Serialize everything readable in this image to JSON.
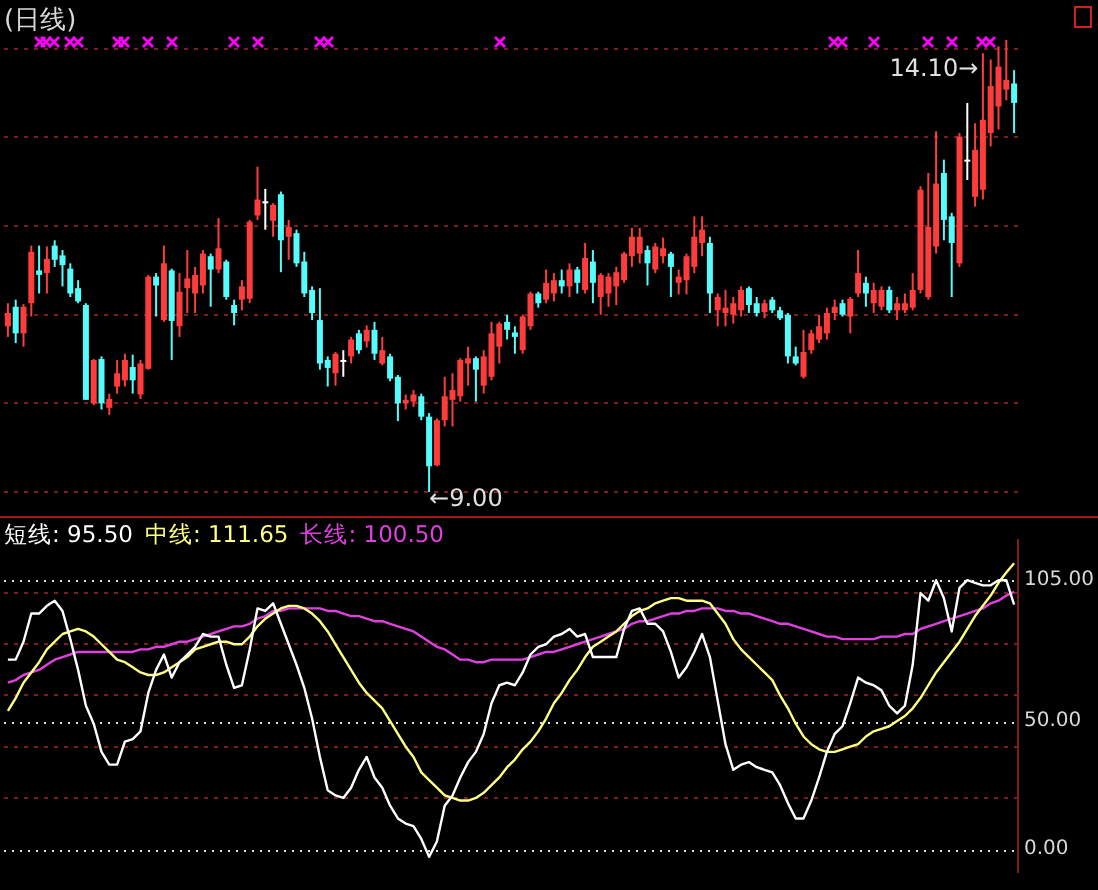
{
  "chart_data": [
    {
      "type": "candlestick",
      "title": "(日线)",
      "categories": [
        null,
        null,
        null,
        null,
        null,
        null,
        null,
        null,
        null,
        null,
        null,
        null,
        null,
        null,
        null,
        null,
        null,
        null,
        null,
        null,
        null,
        null,
        null,
        null,
        null,
        null,
        null,
        null,
        null,
        null,
        null,
        null,
        null,
        null,
        null,
        null,
        null,
        null,
        null,
        null,
        null,
        null,
        null,
        null,
        null,
        null,
        null,
        null,
        null,
        null,
        null,
        null,
        null,
        null,
        null,
        null,
        null,
        null,
        null,
        null,
        null,
        null,
        null,
        null,
        null,
        null,
        null,
        null,
        null,
        null,
        null,
        null,
        null,
        null,
        null,
        null,
        null,
        null,
        null,
        null,
        null,
        null,
        null,
        null,
        null,
        null,
        null,
        null,
        null,
        null,
        null,
        null,
        null,
        null,
        null,
        null,
        null,
        null,
        null,
        null,
        null,
        null,
        null,
        null,
        null,
        null,
        null,
        null,
        null,
        null,
        null,
        null,
        null,
        null,
        null,
        null,
        null,
        null,
        null,
        null,
        null,
        null,
        null,
        null,
        null,
        null,
        null,
        null,
        null,
        null
      ],
      "yticks": [
        {
          "value": 9,
          "label": null
        },
        {
          "value": 10,
          "label": null
        },
        {
          "value": 11,
          "label": null
        },
        {
          "value": 12,
          "label": null
        },
        {
          "value": 13,
          "label": null
        },
        {
          "value": 14,
          "label": null
        }
      ],
      "grid": "y",
      "tick_labels": false,
      "ohlc": [
        [
          10.87,
          11.13,
          10.75,
          11.02
        ],
        [
          11.09,
          11.17,
          10.68,
          10.79
        ],
        [
          10.79,
          11.12,
          10.64,
          11.09
        ],
        [
          11.13,
          11.78,
          10.98,
          11.71
        ],
        [
          11.5,
          11.78,
          11.24,
          11.45
        ],
        [
          11.47,
          11.77,
          11.24,
          11.63
        ],
        [
          11.78,
          11.84,
          11.54,
          11.62
        ],
        [
          11.67,
          11.73,
          11.32,
          11.56
        ],
        [
          11.52,
          11.58,
          11.2,
          11.24
        ],
        [
          11.3,
          11.39,
          11.13,
          11.15
        ],
        [
          11.11,
          11.13,
          10.04,
          10.04
        ],
        [
          10.0,
          10.5,
          9.98,
          10.49
        ],
        [
          10.5,
          10.53,
          9.93,
          10.0
        ],
        [
          9.95,
          10.11,
          9.87,
          10.05
        ],
        [
          10.19,
          10.49,
          10.11,
          10.34
        ],
        [
          10.26,
          10.56,
          10.19,
          10.49
        ],
        [
          10.41,
          10.55,
          10.11,
          10.26
        ],
        [
          10.1,
          10.49,
          10.05,
          10.45
        ],
        [
          10.39,
          11.45,
          10.38,
          11.43
        ],
        [
          11.43,
          11.47,
          10.98,
          11.33
        ],
        [
          10.94,
          11.78,
          10.92,
          11.58
        ],
        [
          11.5,
          11.52,
          10.49,
          10.93
        ],
        [
          10.87,
          11.47,
          10.75,
          11.26
        ],
        [
          11.3,
          11.73,
          11.02,
          11.41
        ],
        [
          11.24,
          11.54,
          11.02,
          11.45
        ],
        [
          11.33,
          11.73,
          11.24,
          11.69
        ],
        [
          11.66,
          11.69,
          11.09,
          11.51
        ],
        [
          11.51,
          12.09,
          11.47,
          11.75
        ],
        [
          11.6,
          11.62,
          11.17,
          11.2
        ],
        [
          11.11,
          11.17,
          10.88,
          11.02
        ],
        [
          11.17,
          11.39,
          11.05,
          11.32
        ],
        [
          11.18,
          12.07,
          11.13,
          12.05
        ],
        [
          12.12,
          12.67,
          12.07,
          12.3
        ],
        [
          12.28,
          12.42,
          11.96,
          12.28
        ],
        [
          12.06,
          12.26,
          11.88,
          12.24
        ],
        [
          12.36,
          12.39,
          11.48,
          11.84
        ],
        [
          11.88,
          12.07,
          11.62,
          11.99
        ],
        [
          11.92,
          11.96,
          11.54,
          11.58
        ],
        [
          11.6,
          11.71,
          11.2,
          11.24
        ],
        [
          11.28,
          11.32,
          10.94,
          11.02
        ],
        [
          10.94,
          11.3,
          10.38,
          10.45
        ],
        [
          10.49,
          10.53,
          10.19,
          10.4
        ],
        [
          10.34,
          10.58,
          10.2,
          10.56
        ],
        [
          10.49,
          10.6,
          10.3,
          10.49
        ],
        [
          10.53,
          10.75,
          10.45,
          10.72
        ],
        [
          10.79,
          10.83,
          10.56,
          10.6
        ],
        [
          10.7,
          10.88,
          10.63,
          10.83
        ],
        [
          10.83,
          10.92,
          10.49,
          10.56
        ],
        [
          10.45,
          10.75,
          10.43,
          10.6
        ],
        [
          10.53,
          10.56,
          10.25,
          10.28
        ],
        [
          10.3,
          10.32,
          9.8,
          10.0
        ],
        [
          10.0,
          10.1,
          9.93,
          10.04
        ],
        [
          10.02,
          10.15,
          9.96,
          10.1
        ],
        [
          10.08,
          10.11,
          9.81,
          9.85
        ],
        [
          9.85,
          9.89,
          9.0,
          9.29
        ],
        [
          9.3,
          9.83,
          9.29,
          9.81
        ],
        [
          9.81,
          10.3,
          9.74,
          10.08
        ],
        [
          10.04,
          10.34,
          9.74,
          10.15
        ],
        [
          10.08,
          10.51,
          10.02,
          10.49
        ],
        [
          10.45,
          10.64,
          10.2,
          10.51
        ],
        [
          10.51,
          10.53,
          10.02,
          10.38
        ],
        [
          10.2,
          10.6,
          10.11,
          10.53
        ],
        [
          10.3,
          10.92,
          10.26,
          10.79
        ],
        [
          10.64,
          10.92,
          10.45,
          10.9
        ],
        [
          10.92,
          11.0,
          10.72,
          10.83
        ],
        [
          10.8,
          10.87,
          10.56,
          10.75
        ],
        [
          10.6,
          11.0,
          10.56,
          10.98
        ],
        [
          10.87,
          11.26,
          10.83,
          11.24
        ],
        [
          11.24,
          11.26,
          11.08,
          11.13
        ],
        [
          11.17,
          11.51,
          11.13,
          11.36
        ],
        [
          11.24,
          11.47,
          11.15,
          11.39
        ],
        [
          11.39,
          11.51,
          11.24,
          11.32
        ],
        [
          11.32,
          11.58,
          11.2,
          11.51
        ],
        [
          11.51,
          11.54,
          11.24,
          11.36
        ],
        [
          11.28,
          11.81,
          11.24,
          11.64
        ],
        [
          11.6,
          11.73,
          11.13,
          11.36
        ],
        [
          11.2,
          11.47,
          11.0,
          11.45
        ],
        [
          11.24,
          11.47,
          11.09,
          11.43
        ],
        [
          11.32,
          11.54,
          11.11,
          11.48
        ],
        [
          11.39,
          11.71,
          11.36,
          11.69
        ],
        [
          11.66,
          11.98,
          11.54,
          11.88
        ],
        [
          11.69,
          11.98,
          11.58,
          11.88
        ],
        [
          11.73,
          11.78,
          11.33,
          11.58
        ],
        [
          11.51,
          11.81,
          11.47,
          11.77
        ],
        [
          11.66,
          11.87,
          11.58,
          11.75
        ],
        [
          11.69,
          11.71,
          11.2,
          11.54
        ],
        [
          11.36,
          11.51,
          11.23,
          11.43
        ],
        [
          11.39,
          11.69,
          11.23,
          11.66
        ],
        [
          11.54,
          12.11,
          11.47,
          11.88
        ],
        [
          11.81,
          12.11,
          11.66,
          11.96
        ],
        [
          11.81,
          11.88,
          11.02,
          11.24
        ],
        [
          11.05,
          11.24,
          10.87,
          11.2
        ],
        [
          11.02,
          11.28,
          10.87,
          11.08
        ],
        [
          11.0,
          11.2,
          10.9,
          11.13
        ],
        [
          11.05,
          11.32,
          10.98,
          11.28
        ],
        [
          11.3,
          11.32,
          11.02,
          11.11
        ],
        [
          11.13,
          11.2,
          10.98,
          11.02
        ],
        [
          11.03,
          11.17,
          10.96,
          11.13
        ],
        [
          11.17,
          11.2,
          11.02,
          11.05
        ],
        [
          11.05,
          11.09,
          10.94,
          10.96
        ],
        [
          11.0,
          11.02,
          10.45,
          10.53
        ],
        [
          10.53,
          10.64,
          10.43,
          10.45
        ],
        [
          10.3,
          10.83,
          10.28,
          10.58
        ],
        [
          10.6,
          10.83,
          10.56,
          10.79
        ],
        [
          10.72,
          11.0,
          10.68,
          10.87
        ],
        [
          10.79,
          11.08,
          10.72,
          11.02
        ],
        [
          11.02,
          11.17,
          10.94,
          11.09
        ],
        [
          11.13,
          11.17,
          10.98,
          11.0
        ],
        [
          10.98,
          11.2,
          10.79,
          11.18
        ],
        [
          11.24,
          11.73,
          11.2,
          11.47
        ],
        [
          11.36,
          11.43,
          11.09,
          11.24
        ],
        [
          11.13,
          11.36,
          11.02,
          11.28
        ],
        [
          11.09,
          11.32,
          11.05,
          11.28
        ],
        [
          11.28,
          11.32,
          11.02,
          11.05
        ],
        [
          11.05,
          11.2,
          10.94,
          11.13
        ],
        [
          11.05,
          11.24,
          11.02,
          11.13
        ],
        [
          11.08,
          11.47,
          11.05,
          11.28
        ],
        [
          11.28,
          12.45,
          11.24,
          12.41
        ],
        [
          11.2,
          12.6,
          11.17,
          11.99
        ],
        [
          11.77,
          13.07,
          11.69,
          12.48
        ],
        [
          12.6,
          12.75,
          11.84,
          12.07
        ],
        [
          12.11,
          12.15,
          11.2,
          11.81
        ],
        [
          11.58,
          13.05,
          11.54,
          13.01
        ],
        [
          12.75,
          13.39,
          12.52,
          12.75
        ],
        [
          12.33,
          13.16,
          12.22,
          12.86
        ],
        [
          12.41,
          13.95,
          12.3,
          13.2
        ],
        [
          13.05,
          13.88,
          12.9,
          13.58
        ],
        [
          13.35,
          14.03,
          13.09,
          13.8
        ],
        [
          13.54,
          14.1,
          13.42,
          13.65
        ],
        [
          13.61,
          13.76,
          13.05,
          13.39
        ]
      ],
      "colors": [
        "#ff3c3c",
        "#54fcfc",
        "#ff3c3c",
        "#ff3c3c",
        "#54fcfc",
        "#ff3c3c",
        "#54fcfc",
        "#54fcfc",
        "#54fcfc",
        "#54fcfc",
        "#54fcfc",
        "#ff3c3c",
        "#54fcfc",
        "#ff3c3c",
        "#ff3c3c",
        "#ff3c3c",
        "#54fcfc",
        "#ff3c3c",
        "#ff3c3c",
        "#54fcfc",
        "#ff3c3c",
        "#54fcfc",
        "#ff3c3c",
        "#ff3c3c",
        "#ff3c3c",
        "#ff3c3c",
        "#54fcfc",
        "#ff3c3c",
        "#54fcfc",
        "#54fcfc",
        "#ff3c3c",
        "#ff3c3c",
        "#ff3c3c",
        "#ffffff",
        "#ff3c3c",
        "#54fcfc",
        "#ff3c3c",
        "#54fcfc",
        "#54fcfc",
        "#54fcfc",
        "#54fcfc",
        "#54fcfc",
        "#ff3c3c",
        "#ffffff",
        "#ff3c3c",
        "#54fcfc",
        "#ff3c3c",
        "#54fcfc",
        "#ff3c3c",
        "#54fcfc",
        "#54fcfc",
        "#ff3c3c",
        "#ff3c3c",
        "#54fcfc",
        "#54fcfc",
        "#ff3c3c",
        "#ff3c3c",
        "#ff3c3c",
        "#ff3c3c",
        "#ff3c3c",
        "#54fcfc",
        "#ff3c3c",
        "#ff3c3c",
        "#ff3c3c",
        "#54fcfc",
        "#54fcfc",
        "#ff3c3c",
        "#ff3c3c",
        "#54fcfc",
        "#ff3c3c",
        "#ff3c3c",
        "#54fcfc",
        "#ff3c3c",
        "#54fcfc",
        "#ff3c3c",
        "#54fcfc",
        "#ff3c3c",
        "#ff3c3c",
        "#ff3c3c",
        "#ff3c3c",
        "#ff3c3c",
        "#ff3c3c",
        "#54fcfc",
        "#ff3c3c",
        "#ff3c3c",
        "#54fcfc",
        "#ff3c3c",
        "#ff3c3c",
        "#ff3c3c",
        "#ff3c3c",
        "#54fcfc",
        "#ff3c3c",
        "#ff3c3c",
        "#ff3c3c",
        "#ff3c3c",
        "#54fcfc",
        "#54fcfc",
        "#ff3c3c",
        "#54fcfc",
        "#54fcfc",
        "#54fcfc",
        "#54fcfc",
        "#ff3c3c",
        "#ff3c3c",
        "#ff3c3c",
        "#ff3c3c",
        "#ff3c3c",
        "#54fcfc",
        "#ff3c3c",
        "#ff3c3c",
        "#54fcfc",
        "#ff3c3c",
        "#ff3c3c",
        "#54fcfc",
        "#ff3c3c",
        "#ff3c3c",
        "#ff3c3c",
        "#ff3c3c",
        "#ff3c3c",
        "#ff3c3c",
        "#54fcfc",
        "#54fcfc",
        "#ff3c3c",
        "#ffffff",
        "#ff3c3c",
        "#ff3c3c",
        "#ff3c3c",
        "#ff3c3c",
        "#ff3c3c",
        "#54fcfc"
      ],
      "annotations": [
        "←9.00",
        "14.10→"
      ]
    },
    {
      "type": "line",
      "categories": [
        null,
        null,
        null,
        null,
        null,
        null,
        null,
        null,
        null,
        null,
        null,
        null,
        null,
        null,
        null,
        null,
        null,
        null,
        null,
        null,
        null,
        null,
        null,
        null,
        null,
        null,
        null,
        null,
        null,
        null,
        null,
        null,
        null,
        null,
        null,
        null,
        null,
        null,
        null,
        null,
        null,
        null,
        null,
        null,
        null,
        null,
        null,
        null,
        null,
        null,
        null,
        null,
        null,
        null,
        null,
        null,
        null,
        null,
        null,
        null,
        null,
        null,
        null,
        null,
        null,
        null,
        null,
        null,
        null,
        null,
        null,
        null,
        null,
        null,
        null,
        null,
        null,
        null,
        null,
        null,
        null,
        null,
        null,
        null,
        null,
        null,
        null,
        null,
        null,
        null,
        null,
        null,
        null,
        null,
        null,
        null,
        null,
        null,
        null,
        null,
        null,
        null,
        null,
        null,
        null,
        null,
        null,
        null,
        null,
        null,
        null,
        null,
        null,
        null,
        null,
        null,
        null,
        null,
        null,
        null,
        null,
        null,
        null,
        null,
        null,
        null,
        null,
        null,
        null,
        null
      ],
      "ylim": [
        -8.9,
        120.7
      ],
      "yticks": [
        {
          "value": 0,
          "label": "0.00"
        },
        {
          "value": 20,
          "label": null
        },
        {
          "value": 40,
          "label": null
        },
        {
          "value": 50,
          "label": "50.00"
        },
        {
          "value": 60,
          "label": null
        },
        {
          "value": 80,
          "label": null
        },
        {
          "value": 100,
          "label": null
        },
        {
          "value": 105,
          "label": "105.00"
        }
      ],
      "grid": "y",
      "tick_labels": "y",
      "series": [
        {
          "name": "短线:",
          "color": "#ffffff",
          "values": [
            74,
            74,
            81,
            92,
            92,
            95,
            97,
            93,
            82,
            70,
            56,
            49,
            38,
            33,
            33,
            42,
            43,
            46,
            61,
            70,
            76,
            67,
            73,
            76,
            79,
            84,
            83,
            83,
            72,
            63,
            64,
            78,
            94,
            93,
            96,
            88,
            80,
            72,
            63,
            51,
            36,
            23,
            21,
            20,
            24,
            31,
            36,
            28,
            24,
            17,
            12,
            10,
            9,
            4,
            -3,
            3,
            17,
            21,
            28,
            34,
            38,
            45,
            57,
            64,
            65,
            64,
            69,
            76,
            79,
            80,
            83,
            84,
            86,
            83,
            84,
            75,
            75,
            75,
            75,
            86,
            93,
            94,
            88,
            88,
            85,
            77,
            67,
            71,
            77,
            84,
            75,
            58,
            41,
            31,
            33,
            34,
            32,
            31,
            30,
            25,
            18,
            12,
            12,
            19,
            28,
            38,
            45,
            48,
            57,
            67,
            65,
            64,
            62,
            56,
            53,
            56,
            72,
            100,
            97,
            105,
            98,
            85,
            102,
            105,
            104,
            103,
            103,
            105,
            105,
            95.5
          ],
          "value_labels": [
            null,
            null,
            null,
            null,
            null,
            null,
            null,
            null,
            null,
            null,
            null,
            null,
            null,
            null,
            null,
            null,
            null,
            null,
            null,
            null,
            null,
            null,
            null,
            null,
            null,
            null,
            null,
            null,
            null,
            null,
            null,
            null,
            null,
            null,
            null,
            null,
            null,
            null,
            null,
            null,
            null,
            null,
            null,
            null,
            null,
            null,
            null,
            null,
            null,
            null,
            null,
            null,
            null,
            null,
            null,
            null,
            null,
            null,
            null,
            null,
            null,
            null,
            null,
            null,
            null,
            null,
            null,
            null,
            null,
            null,
            null,
            null,
            null,
            null,
            null,
            null,
            null,
            null,
            null,
            null,
            null,
            null,
            null,
            null,
            null,
            null,
            null,
            null,
            null,
            null,
            null,
            null,
            null,
            null,
            null,
            null,
            null,
            null,
            null,
            null,
            null,
            null,
            null,
            null,
            null,
            null,
            null,
            null,
            null,
            null,
            null,
            null,
            null,
            null,
            null,
            null,
            null,
            null,
            null,
            null,
            null,
            null,
            null,
            null,
            null,
            null,
            null,
            null,
            null,
            "95.50"
          ]
        },
        {
          "name": "中线:",
          "color": "#ffff80",
          "values": [
            54,
            59,
            65,
            69,
            73,
            78,
            81,
            84,
            85,
            86,
            85,
            83,
            80,
            77,
            74,
            73,
            71,
            69,
            68,
            68,
            69,
            71,
            73,
            75,
            78,
            79,
            80,
            81,
            81,
            80,
            80,
            83,
            87,
            90,
            92,
            94,
            95,
            95,
            94,
            92,
            89,
            85,
            80,
            75,
            70,
            65,
            61,
            58,
            55,
            50,
            45,
            40,
            36,
            30,
            27,
            24,
            21,
            20,
            19,
            19,
            20,
            22,
            25,
            28,
            32,
            35,
            39,
            42,
            46,
            51,
            57,
            61,
            66,
            70,
            75,
            79,
            81,
            83,
            85,
            88,
            91,
            93,
            94,
            96,
            97,
            98,
            98,
            97,
            97,
            97,
            96,
            92,
            88,
            82,
            78,
            75,
            72,
            69,
            66,
            60,
            55,
            49,
            44,
            41,
            39,
            38,
            38,
            39,
            40,
            41,
            44,
            46,
            47,
            48,
            50,
            52,
            55,
            59,
            64,
            69,
            73,
            77,
            81,
            86,
            91,
            95,
            99,
            104,
            108,
            111.65
          ],
          "value_labels": [
            null,
            null,
            null,
            null,
            null,
            null,
            null,
            null,
            null,
            null,
            null,
            null,
            null,
            null,
            null,
            null,
            null,
            null,
            null,
            null,
            null,
            null,
            null,
            null,
            null,
            null,
            null,
            null,
            null,
            null,
            null,
            null,
            null,
            null,
            null,
            null,
            null,
            null,
            null,
            null,
            null,
            null,
            null,
            null,
            null,
            null,
            null,
            null,
            null,
            null,
            null,
            null,
            null,
            null,
            null,
            null,
            null,
            null,
            null,
            null,
            null,
            null,
            null,
            null,
            null,
            null,
            null,
            null,
            null,
            null,
            null,
            null,
            null,
            null,
            null,
            null,
            null,
            null,
            null,
            null,
            null,
            null,
            null,
            null,
            null,
            null,
            null,
            null,
            null,
            null,
            null,
            null,
            null,
            null,
            null,
            null,
            null,
            null,
            null,
            null,
            null,
            null,
            null,
            null,
            null,
            null,
            null,
            null,
            null,
            null,
            null,
            null,
            null,
            null,
            null,
            null,
            null,
            null,
            null,
            null,
            null,
            null,
            null,
            null,
            null,
            null,
            null,
            null,
            null,
            "111.65"
          ]
        },
        {
          "name": "长线:",
          "color": "#e040e0",
          "values": [
            65,
            66,
            68,
            69,
            70,
            72,
            74,
            75,
            76,
            77,
            77,
            77,
            77,
            77,
            77,
            77,
            77,
            78,
            78,
            79,
            79,
            80,
            81,
            81,
            82,
            83,
            84,
            85,
            86,
            87,
            87,
            88,
            90,
            91,
            93,
            93,
            94,
            94,
            94,
            94,
            94,
            93,
            93,
            92,
            91,
            91,
            90,
            89,
            89,
            88,
            87,
            86,
            85,
            83,
            81,
            79,
            78,
            76,
            74,
            74,
            73,
            73,
            74,
            74,
            74,
            74,
            74,
            75,
            76,
            77,
            77,
            78,
            79,
            80,
            81,
            82,
            83,
            84,
            85,
            86,
            88,
            89,
            89,
            90,
            91,
            92,
            92,
            93,
            93,
            94,
            94,
            94,
            93,
            93,
            92,
            92,
            91,
            90,
            89,
            88,
            88,
            87,
            86,
            85,
            84,
            83,
            83,
            82,
            82,
            82,
            82,
            82,
            83,
            83,
            83,
            84,
            84,
            86,
            87,
            88,
            89,
            90,
            91,
            92,
            93,
            94,
            96,
            97,
            99,
            100.5
          ],
          "value_labels": [
            null,
            null,
            null,
            null,
            null,
            null,
            null,
            null,
            null,
            null,
            null,
            null,
            null,
            null,
            null,
            null,
            null,
            null,
            null,
            null,
            null,
            null,
            null,
            null,
            null,
            null,
            null,
            null,
            null,
            null,
            null,
            null,
            null,
            null,
            null,
            null,
            null,
            null,
            null,
            null,
            null,
            null,
            null,
            null,
            null,
            null,
            null,
            null,
            null,
            null,
            null,
            null,
            null,
            null,
            null,
            null,
            null,
            null,
            null,
            null,
            null,
            null,
            null,
            null,
            null,
            null,
            null,
            null,
            null,
            null,
            null,
            null,
            null,
            null,
            null,
            null,
            null,
            null,
            null,
            null,
            null,
            null,
            null,
            null,
            null,
            null,
            null,
            null,
            null,
            null,
            null,
            null,
            null,
            null,
            null,
            null,
            null,
            null,
            null,
            null,
            null,
            null,
            null,
            null,
            null,
            null,
            null,
            null,
            null,
            null,
            null,
            null,
            null,
            null,
            null,
            null,
            null,
            null,
            null,
            null,
            null,
            null,
            null,
            null,
            null,
            null,
            null,
            null,
            null,
            "100.50"
          ]
        }
      ]
    }
  ]
}
